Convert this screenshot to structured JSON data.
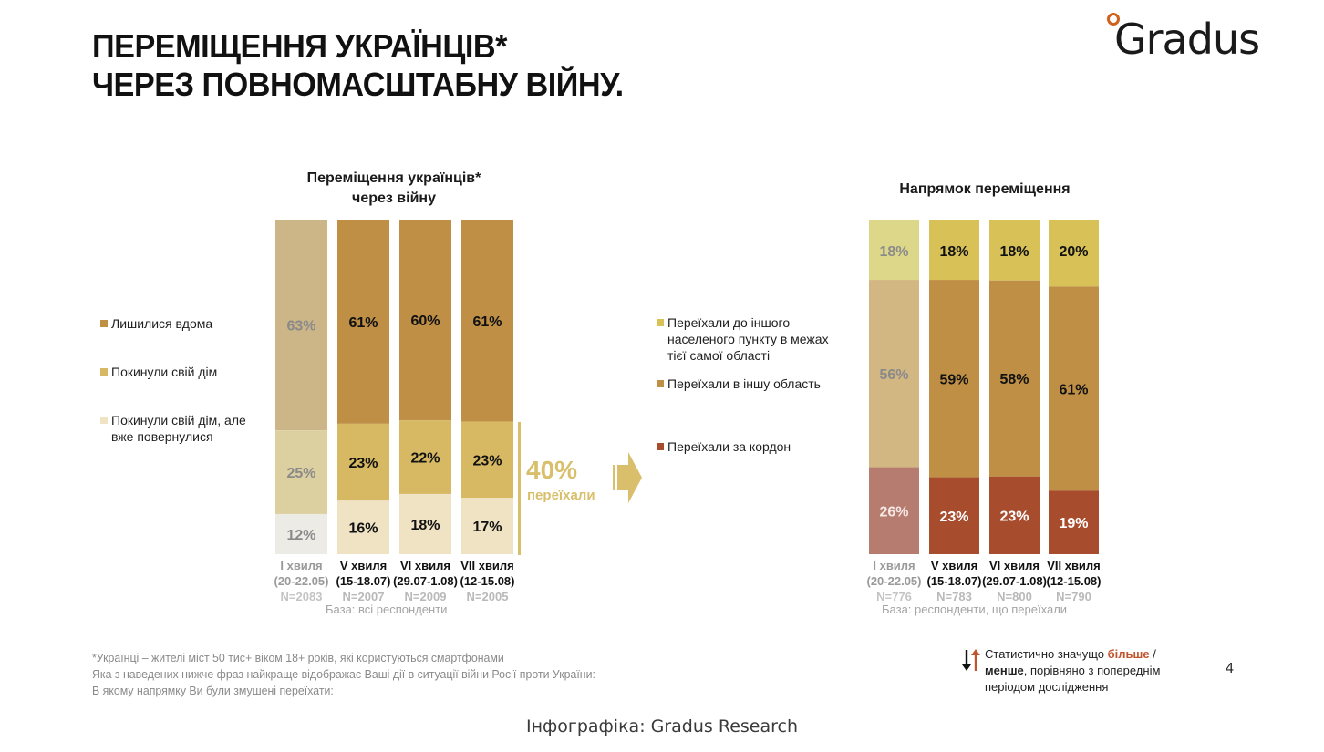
{
  "header": {
    "title_line1": "ПЕРЕМІЩЕННЯ УКРАЇНЦІВ*",
    "title_line2": "ЧЕРЕЗ ПОВНОМАСШТАБНУ ВІЙНУ.",
    "logo_text": "Gradus"
  },
  "colors": {
    "stayed": "#bf8f45",
    "left": "#d6b962",
    "returned": "#f0e3c4",
    "same_region": "#d8c257",
    "other_region": "#bf8f45",
    "abroad": "#a84c2e",
    "faded_stayed": "#ccb586",
    "faded_left": "#dcd0a0",
    "faded_returned": "#ecebe6",
    "faded_same_region": "#ddd78a",
    "faded_other_region": "#d2b782",
    "faded_abroad": "#b77c70",
    "accent": "#d9bf6b",
    "more_red": "#c0542f"
  },
  "chart_data": [
    {
      "type": "bar",
      "stacked": true,
      "title": "Переміщення українців* через війну",
      "title_line1": "Переміщення українців*",
      "title_line2": "через війну",
      "categories": [
        "I хвиля",
        "V хвиля",
        "VI хвиля",
        "VII хвиля"
      ],
      "category_dates": [
        "(20-22.05)",
        "(15-18.07)",
        "(29.07-1.08)",
        "(12-15.08)"
      ],
      "category_n": [
        "N=2083",
        "N=2007",
        "N=2009",
        "N=2005"
      ],
      "series": [
        {
          "name": "Лишилися вдома",
          "values": [
            63,
            61,
            60,
            61
          ]
        },
        {
          "name": "Покинули свій дім",
          "values": [
            25,
            23,
            22,
            23
          ]
        },
        {
          "name": "Покинули свій дім, але вже повернулися",
          "values": [
            12,
            16,
            18,
            17
          ]
        }
      ],
      "legend_labels": [
        "Лишилися вдома",
        "Покинули свій дім",
        "Покинули свій дім, але",
        "вже повернулися"
      ],
      "base_note": "База: всі респонденти",
      "summary_value": "40%",
      "summary_label": "переїхали",
      "ylim": [
        0,
        100
      ],
      "legend_position": "left"
    },
    {
      "type": "bar",
      "stacked": true,
      "title": "Напрямок переміщення",
      "categories": [
        "I хвиля",
        "V хвиля",
        "VI хвиля",
        "VII хвиля"
      ],
      "category_dates": [
        "(20-22.05)",
        "(15-18.07)",
        "(29.07-1.08)",
        "(12-15.08)"
      ],
      "category_n": [
        "N=776",
        "N=783",
        "N=800",
        "N=790"
      ],
      "series": [
        {
          "name": "Переїхали до іншого населеного пункту в межах тієї самої області",
          "values": [
            18,
            18,
            18,
            20
          ]
        },
        {
          "name": "Переїхали в іншу область",
          "values": [
            56,
            59,
            58,
            61
          ]
        },
        {
          "name": "Переїхали за кордон",
          "values": [
            26,
            23,
            23,
            19
          ]
        }
      ],
      "legend_labels": [
        "Переїхали до іншого",
        "населеного пункту в межах",
        "тієї самої області",
        "Переїхали в іншу область",
        "Переїхали за кордон"
      ],
      "base_note": "База: респонденти, що переїхали",
      "ylim": [
        0,
        100
      ],
      "legend_position": "left"
    }
  ],
  "footnote": {
    "line1": "*Українці – жителі міст 50 тис+ віком 18+ років, які користуються смартфонами",
    "line2": "Яка з наведених нижче фраз найкраще відображає Ваші дії в ситуації війни Росії проти України:",
    "line3": "В якому напрямку Ви були змушені переїхати:"
  },
  "significance_note": {
    "prefix": "Статистично значущо ",
    "more": "більше",
    "slash": " /",
    "less": "менше",
    "rest": ", порівняно з попереднім",
    "line3": "періодом дослідження"
  },
  "page_number": "4",
  "credit": "Інфографіка: Gradus Research"
}
